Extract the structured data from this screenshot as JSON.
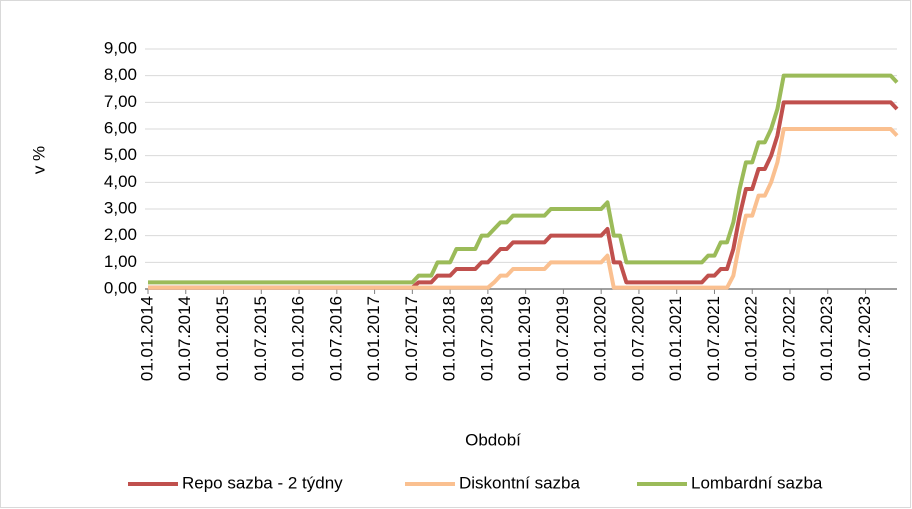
{
  "chart_data": {
    "type": "line",
    "categories": [
      "01.01.2014",
      null,
      null,
      null,
      null,
      null,
      "01.07.2014",
      null,
      null,
      null,
      null,
      null,
      "01.01.2015",
      null,
      null,
      null,
      null,
      null,
      "01.07.2015",
      null,
      null,
      null,
      null,
      null,
      "01.01.2016",
      null,
      null,
      null,
      null,
      null,
      "01.07.2016",
      null,
      null,
      null,
      null,
      null,
      "01.01.2017",
      null,
      null,
      null,
      null,
      null,
      "01.07.2017",
      null,
      null,
      null,
      null,
      null,
      "01.01.2018",
      null,
      null,
      null,
      null,
      null,
      "01.07.2018",
      null,
      null,
      null,
      null,
      null,
      "01.01.2019",
      null,
      null,
      null,
      null,
      null,
      "01.07.2019",
      null,
      null,
      null,
      null,
      null,
      "01.01.2020",
      null,
      null,
      null,
      null,
      null,
      "01.07.2020",
      null,
      null,
      null,
      null,
      null,
      "01.01.2021",
      null,
      null,
      null,
      null,
      null,
      "01.07.2021",
      null,
      null,
      null,
      null,
      null,
      "01.01.2022",
      null,
      null,
      null,
      null,
      null,
      "01.07.2022",
      null,
      null,
      null,
      null,
      null,
      "01.01.2023",
      null,
      null,
      null,
      null,
      null,
      "01.07.2023",
      null,
      null,
      null,
      null,
      null
    ],
    "series": [
      {
        "name": "Repo sazba - 2 týdny",
        "color": "#c0504d",
        "values": [
          0.05,
          0.05,
          0.05,
          0.05,
          0.05,
          0.05,
          0.05,
          0.05,
          0.05,
          0.05,
          0.05,
          0.05,
          0.05,
          0.05,
          0.05,
          0.05,
          0.05,
          0.05,
          0.05,
          0.05,
          0.05,
          0.05,
          0.05,
          0.05,
          0.05,
          0.05,
          0.05,
          0.05,
          0.05,
          0.05,
          0.05,
          0.05,
          0.05,
          0.05,
          0.05,
          0.05,
          0.05,
          0.05,
          0.05,
          0.05,
          0.05,
          0.05,
          0.05,
          0.25,
          0.25,
          0.25,
          0.5,
          0.5,
          0.5,
          0.75,
          0.75,
          0.75,
          0.75,
          1.0,
          1.0,
          1.25,
          1.5,
          1.5,
          1.75,
          1.75,
          1.75,
          1.75,
          1.75,
          1.75,
          2.0,
          2.0,
          2.0,
          2.0,
          2.0,
          2.0,
          2.0,
          2.0,
          2.0,
          2.25,
          1.0,
          1.0,
          0.25,
          0.25,
          0.25,
          0.25,
          0.25,
          0.25,
          0.25,
          0.25,
          0.25,
          0.25,
          0.25,
          0.25,
          0.25,
          0.5,
          0.5,
          0.75,
          0.75,
          1.5,
          2.75,
          3.75,
          3.75,
          4.5,
          4.5,
          5.0,
          5.75,
          7.0,
          7.0,
          7.0,
          7.0,
          7.0,
          7.0,
          7.0,
          7.0,
          7.0,
          7.0,
          7.0,
          7.0,
          7.0,
          7.0,
          7.0,
          7.0,
          7.0,
          7.0,
          6.75
        ]
      },
      {
        "name": "Diskontní sazba",
        "color": "#fac090",
        "values": [
          0.05,
          0.05,
          0.05,
          0.05,
          0.05,
          0.05,
          0.05,
          0.05,
          0.05,
          0.05,
          0.05,
          0.05,
          0.05,
          0.05,
          0.05,
          0.05,
          0.05,
          0.05,
          0.05,
          0.05,
          0.05,
          0.05,
          0.05,
          0.05,
          0.05,
          0.05,
          0.05,
          0.05,
          0.05,
          0.05,
          0.05,
          0.05,
          0.05,
          0.05,
          0.05,
          0.05,
          0.05,
          0.05,
          0.05,
          0.05,
          0.05,
          0.05,
          0.05,
          0.05,
          0.05,
          0.05,
          0.05,
          0.05,
          0.05,
          0.05,
          0.05,
          0.05,
          0.05,
          0.05,
          0.05,
          0.25,
          0.5,
          0.5,
          0.75,
          0.75,
          0.75,
          0.75,
          0.75,
          0.75,
          1.0,
          1.0,
          1.0,
          1.0,
          1.0,
          1.0,
          1.0,
          1.0,
          1.0,
          1.25,
          0.05,
          0.05,
          0.05,
          0.05,
          0.05,
          0.05,
          0.05,
          0.05,
          0.05,
          0.05,
          0.05,
          0.05,
          0.05,
          0.05,
          0.05,
          0.05,
          0.05,
          0.05,
          0.05,
          0.5,
          1.75,
          2.75,
          2.75,
          3.5,
          3.5,
          4.0,
          4.75,
          6.0,
          6.0,
          6.0,
          6.0,
          6.0,
          6.0,
          6.0,
          6.0,
          6.0,
          6.0,
          6.0,
          6.0,
          6.0,
          6.0,
          6.0,
          6.0,
          6.0,
          6.0,
          5.75
        ]
      },
      {
        "name": "Lombardní sazba",
        "color": "#9bbb59",
        "values": [
          0.25,
          0.25,
          0.25,
          0.25,
          0.25,
          0.25,
          0.25,
          0.25,
          0.25,
          0.25,
          0.25,
          0.25,
          0.25,
          0.25,
          0.25,
          0.25,
          0.25,
          0.25,
          0.25,
          0.25,
          0.25,
          0.25,
          0.25,
          0.25,
          0.25,
          0.25,
          0.25,
          0.25,
          0.25,
          0.25,
          0.25,
          0.25,
          0.25,
          0.25,
          0.25,
          0.25,
          0.25,
          0.25,
          0.25,
          0.25,
          0.25,
          0.25,
          0.25,
          0.5,
          0.5,
          0.5,
          1.0,
          1.0,
          1.0,
          1.5,
          1.5,
          1.5,
          1.5,
          2.0,
          2.0,
          2.25,
          2.5,
          2.5,
          2.75,
          2.75,
          2.75,
          2.75,
          2.75,
          2.75,
          3.0,
          3.0,
          3.0,
          3.0,
          3.0,
          3.0,
          3.0,
          3.0,
          3.0,
          3.25,
          2.0,
          2.0,
          1.0,
          1.0,
          1.0,
          1.0,
          1.0,
          1.0,
          1.0,
          1.0,
          1.0,
          1.0,
          1.0,
          1.0,
          1.0,
          1.25,
          1.25,
          1.75,
          1.75,
          2.5,
          3.75,
          4.75,
          4.75,
          5.5,
          5.5,
          6.0,
          6.75,
          8.0,
          8.0,
          8.0,
          8.0,
          8.0,
          8.0,
          8.0,
          8.0,
          8.0,
          8.0,
          8.0,
          8.0,
          8.0,
          8.0,
          8.0,
          8.0,
          8.0,
          8.0,
          7.75
        ]
      }
    ],
    "ylabel": "v %",
    "xlabel": "Období",
    "ylim": [
      0,
      9
    ],
    "yticks": [
      {
        "value": 0,
        "label": "0,00"
      },
      {
        "value": 1,
        "label": "1,00"
      },
      {
        "value": 2,
        "label": "2,00"
      },
      {
        "value": 3,
        "label": "3,00"
      },
      {
        "value": 4,
        "label": "4,00"
      },
      {
        "value": 5,
        "label": "5,00"
      },
      {
        "value": 6,
        "label": "6,00"
      },
      {
        "value": 7,
        "label": "7,00"
      },
      {
        "value": 8,
        "label": "8,00"
      },
      {
        "value": 9,
        "label": "9,00"
      }
    ],
    "grid": true,
    "legend": "bottom"
  }
}
